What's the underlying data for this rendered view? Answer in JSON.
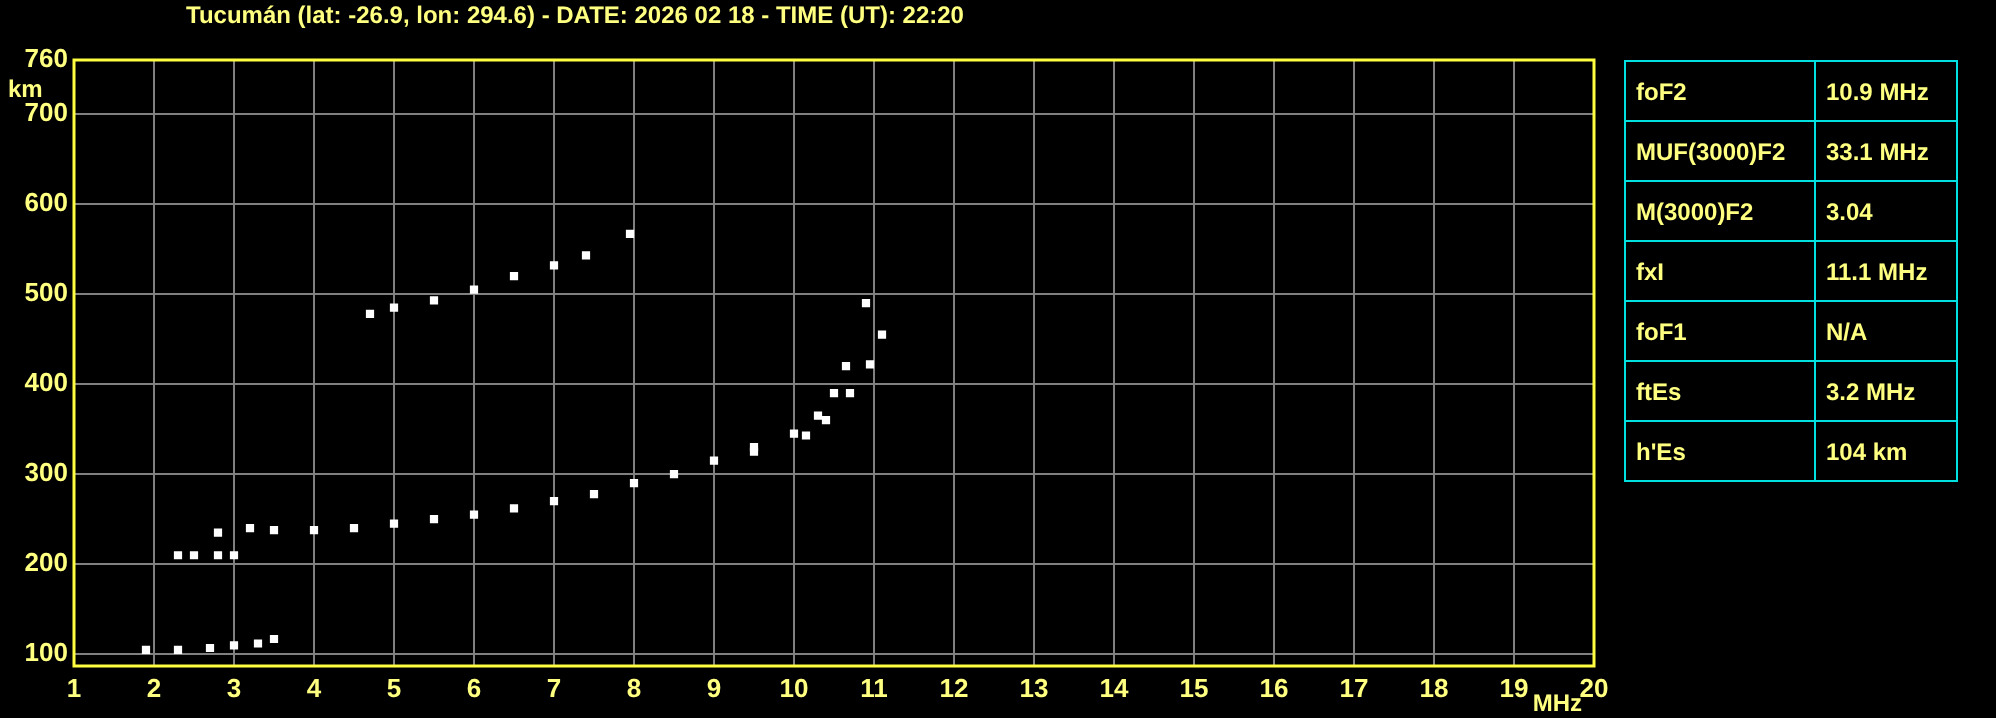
{
  "chart_data": [
    {
      "type": "scatter",
      "title": "Tucumán (lat: -26.9, lon: 294.6) - DATE: 2026 02 18 - TIME (UT): 22:20",
      "xlabel": "MHz",
      "ylabel": "km",
      "xlim": [
        1,
        20
      ],
      "xticks": [
        1,
        2,
        3,
        4,
        5,
        6,
        7,
        8,
        9,
        10,
        11,
        12,
        13,
        14,
        15,
        16,
        17,
        18,
        19,
        20
      ],
      "ylim": [
        87,
        760
      ],
      "yticks": [
        100,
        200,
        300,
        400,
        500,
        600,
        700,
        760
      ],
      "grid": true,
      "legend": false,
      "marker": "square",
      "series": [
        {
          "color": "#ffffff",
          "x": [
            1.9,
            2.3,
            2.7,
            3.0,
            3.3,
            3.5
          ],
          "values": [
            105,
            105,
            107,
            110,
            112,
            117
          ]
        },
        {
          "color": "#ffffff",
          "x": [
            2.3,
            2.5,
            2.8,
            3.0
          ],
          "values": [
            210,
            210,
            210,
            210
          ]
        },
        {
          "color": "#ffffff",
          "x": [
            2.8,
            3.2,
            3.5,
            4.0,
            4.5,
            5.0,
            5.5,
            6.0,
            6.5,
            7.0,
            7.5,
            8.0,
            8.5,
            9.0,
            9.5,
            10.0,
            10.3,
            10.5,
            10.65,
            10.9
          ],
          "values": [
            235,
            240,
            238,
            238,
            240,
            245,
            250,
            255,
            262,
            270,
            278,
            290,
            300,
            315,
            330,
            345,
            365,
            390,
            420,
            490
          ]
        },
        {
          "color": "#ffffff",
          "x": [
            9.5,
            10.15,
            10.4,
            10.7,
            10.95,
            11.1
          ],
          "values": [
            325,
            343,
            360,
            390,
            422,
            455
          ]
        },
        {
          "color": "#ffffff",
          "x": [
            4.7,
            5.0,
            5.5,
            6.0,
            6.5,
            7.0,
            7.4,
            7.95
          ],
          "values": [
            478,
            485,
            493,
            505,
            520,
            532,
            543,
            567
          ]
        }
      ]
    },
    {
      "type": "other",
      "y_categories": [
        "foF2",
        "MUF(3000)F2",
        "M(3000)F2",
        "fxI",
        "foF1",
        "ftEs",
        "h'Es"
      ],
      "cell_labels": [
        [
          "10.9 MHz"
        ],
        [
          "33.1 MHz"
        ],
        [
          "3.04"
        ],
        [
          "11.1 MHz"
        ],
        [
          "N/A"
        ],
        [
          "3.2 MHz"
        ],
        [
          "104 km"
        ]
      ]
    }
  ]
}
